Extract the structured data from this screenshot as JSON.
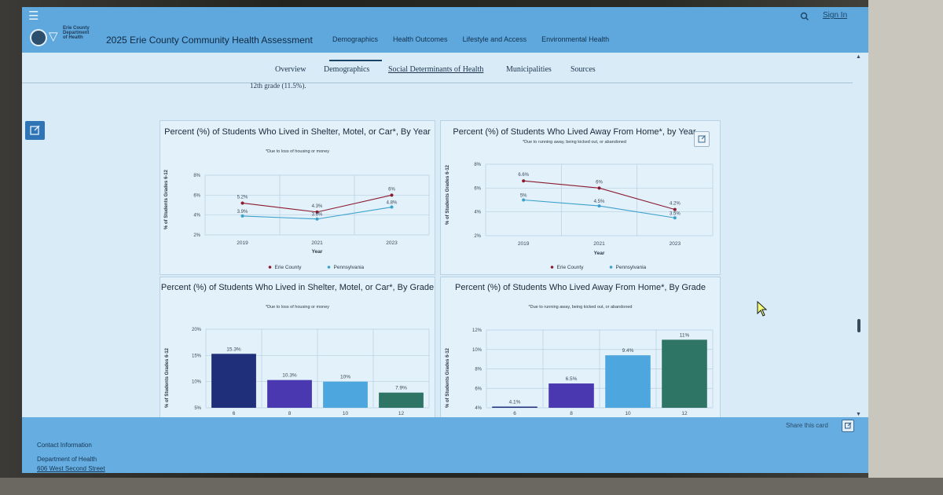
{
  "header": {
    "logo_lines": [
      "Erie County",
      "Department",
      "of Health"
    ],
    "title": "2025 Erie County Community Health Assessment",
    "tabs": [
      {
        "label": "Demographics",
        "active": true
      },
      {
        "label": "Health Outcomes",
        "active": false
      },
      {
        "label": "Lifestyle and Access",
        "active": false
      },
      {
        "label": "Environmental Health",
        "active": false
      }
    ],
    "signin_label": "Sign In",
    "search_icon": "search-icon",
    "menu_icon": "hamburger-icon"
  },
  "subnav": {
    "items": [
      {
        "label": "Overview",
        "active": false
      },
      {
        "label": "Demographics",
        "active": false
      },
      {
        "label": "Social Determinants of Health",
        "active": true
      },
      {
        "label": "Municipalities",
        "active": false
      },
      {
        "label": "Sources",
        "active": false
      }
    ]
  },
  "page": {
    "cutoff_text": "12th grade (11.5%)."
  },
  "colors": {
    "erie": "#8b1a2e",
    "pennsylvania": "#3aa0cc",
    "bar6": "#1f2f7a",
    "bar8": "#4a38b0",
    "bar10": "#4da7de",
    "bar12": "#2e7565"
  },
  "chart_data": [
    {
      "type": "line",
      "title": "Percent (%) of Students Who Lived in Shelter, Motel, or Car*, By Year",
      "subtitle": "*Due to loss of housing or money",
      "ylabel": "% of Students Grades 6-12",
      "xlabel": "Year",
      "ylim": [
        2,
        8
      ],
      "yticks": [
        "8%",
        "6%",
        "4%",
        "2%"
      ],
      "categories": [
        "2019",
        "2021",
        "2023"
      ],
      "series": [
        {
          "name": "Erie County",
          "values": [
            5.2,
            4.3,
            6
          ],
          "labels": [
            "5.2%",
            "4.3%",
            "6%"
          ]
        },
        {
          "name": "Pennsylvania",
          "values": [
            3.9,
            3.6,
            4.8
          ],
          "labels": [
            "3.9%",
            "3.6%",
            "4.8%"
          ]
        }
      ],
      "legend": "bottom",
      "grid": true
    },
    {
      "type": "line",
      "title": "Percent (%) of Students Who Lived Away From Home*, by Year",
      "subtitle": "*Due to running away, being kicked out, or abandoned",
      "ylabel": "% of Students Grades 6-12",
      "xlabel": "Year",
      "ylim": [
        2,
        8
      ],
      "yticks": [
        "8%",
        "6%",
        "4%",
        "2%"
      ],
      "categories": [
        "2019",
        "2021",
        "2023"
      ],
      "series": [
        {
          "name": "Erie County",
          "values": [
            6.6,
            6,
            4.2
          ],
          "labels": [
            "6.6%",
            "6%",
            "4.2%"
          ]
        },
        {
          "name": "Pennsylvania",
          "values": [
            5,
            4.5,
            3.5
          ],
          "labels": [
            "5%",
            "4.5%",
            "3.5%"
          ]
        }
      ],
      "legend": "bottom",
      "grid": true
    },
    {
      "type": "bar",
      "title": "Percent (%) of Students Who Lived in Shelter, Motel, or Car*, By Grade",
      "subtitle": "*Due to loss of housing or money",
      "ylabel": "% of Students Grades 6-12",
      "ylim": [
        5,
        20
      ],
      "yticks": [
        "20%",
        "15%",
        "10%",
        "5%"
      ],
      "categories": [
        "6",
        "8",
        "10",
        "12"
      ],
      "values": [
        15.3,
        10.3,
        10,
        7.9
      ],
      "labels": [
        "15.3%",
        "10.3%",
        "10%",
        "7.9%"
      ],
      "grid": true
    },
    {
      "type": "bar",
      "title": "Percent (%) of Students Who Lived Away From Home*, By Grade",
      "subtitle": "*Due to running away, being kicked out, or abandoned",
      "ylabel": "% of Students Grades 6-12",
      "ylim": [
        4,
        12
      ],
      "yticks": [
        "12%",
        "10%",
        "8%",
        "6%",
        "4%"
      ],
      "categories": [
        "6",
        "8",
        "10",
        "12"
      ],
      "values": [
        4.1,
        6.5,
        9.4,
        11
      ],
      "labels": [
        "4.1%",
        "6.5%",
        "9.4%",
        "11%"
      ],
      "grid": true
    }
  ],
  "footer": {
    "share_card_label": "Share this card",
    "contact_heading": "Contact Information",
    "contact_lines": [
      "Department of Health",
      "606 West Second Street"
    ]
  }
}
